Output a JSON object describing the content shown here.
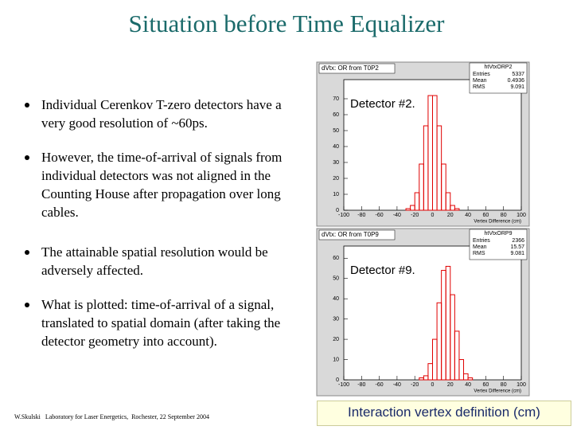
{
  "slide": {
    "title": "Situation before Time Equalizer",
    "bullets": [
      "Individual Cerenkov T-zero detectors have a very good resolution of ~60ps.",
      "However, the time-of-arrival of signals from individual detectors was not aligned in the Counting House after propagation over long cables.",
      "The attainable spatial resolution would be adversely affected.",
      "What is plotted: time-of-arrival of a signal, translated to spatial domain (after taking the detector geometry into account)."
    ],
    "caption": "Interaction vertex definition (cm)",
    "footer": "W.Skulski   Laboratory for Laser Energetics,  Rochester, 22 September 2004"
  },
  "chart_data": [
    {
      "type": "histogram",
      "panel_title": "dVtx: OR from T0P2",
      "stats_title": "htVtxORP2",
      "stats": [
        {
          "label": "Entries",
          "value": 5337
        },
        {
          "label": "Mean",
          "value": 0.4936
        },
        {
          "label": "RMS",
          "value": 9.091
        }
      ],
      "annotation": "Detector #2.",
      "xlabel": "Vertex Difference (cm)",
      "color": "#e00000",
      "bins": [
        -100,
        -95,
        -90,
        -85,
        -80,
        -75,
        -70,
        -65,
        -60,
        -55,
        -50,
        -45,
        -40,
        -35,
        -30,
        -25,
        -20,
        -15,
        -10,
        -5,
        0,
        5,
        10,
        15,
        20,
        25,
        30,
        35,
        40,
        45,
        50,
        55,
        60,
        65,
        70,
        75,
        80,
        85,
        90,
        95,
        100
      ],
      "values": [
        0,
        0,
        0,
        0,
        0,
        0,
        0,
        0,
        0,
        0,
        0,
        0,
        0,
        0,
        1,
        3,
        11,
        29,
        53,
        72,
        72,
        53,
        29,
        11,
        3,
        1,
        0,
        0,
        0,
        0,
        0,
        0,
        0,
        0,
        0,
        0,
        0,
        0,
        0,
        0
      ],
      "xlim": [
        -100,
        100
      ],
      "ylim": [
        0,
        82
      ],
      "xticks": [
        -100,
        -80,
        -60,
        -40,
        -20,
        0,
        20,
        40,
        60,
        80,
        100
      ],
      "yticks": [
        0,
        10,
        20,
        30,
        40,
        50,
        60,
        70
      ]
    },
    {
      "type": "histogram",
      "panel_title": "dVtx: OR from T0P9",
      "stats_title": "htVtxORP9",
      "stats": [
        {
          "label": "Entries",
          "value": 2366
        },
        {
          "label": "Mean",
          "value": 15.57
        },
        {
          "label": "RMS",
          "value": 9.081
        }
      ],
      "annotation": "Detector #9.",
      "xlabel": "Vertex Difference (cm)",
      "color": "#e00000",
      "bins": [
        -100,
        -95,
        -90,
        -85,
        -80,
        -75,
        -70,
        -65,
        -60,
        -55,
        -50,
        -45,
        -40,
        -35,
        -30,
        -25,
        -20,
        -15,
        -10,
        -5,
        0,
        5,
        10,
        15,
        20,
        25,
        30,
        35,
        40,
        45,
        50,
        55,
        60,
        65,
        70,
        75,
        80,
        85,
        90,
        95,
        100
      ],
      "values": [
        0,
        0,
        0,
        0,
        0,
        0,
        0,
        0,
        0,
        0,
        0,
        0,
        0,
        0,
        0,
        0,
        0,
        1,
        2,
        8,
        20,
        38,
        54,
        56,
        42,
        24,
        10,
        3,
        1,
        0,
        0,
        0,
        0,
        0,
        0,
        0,
        0,
        0,
        0,
        0
      ],
      "xlim": [
        -100,
        100
      ],
      "ylim": [
        0,
        66
      ],
      "xticks": [
        -100,
        -80,
        -60,
        -40,
        -20,
        0,
        20,
        40,
        60,
        80,
        100
      ],
      "yticks": [
        0,
        10,
        20,
        30,
        40,
        50,
        60
      ]
    }
  ]
}
